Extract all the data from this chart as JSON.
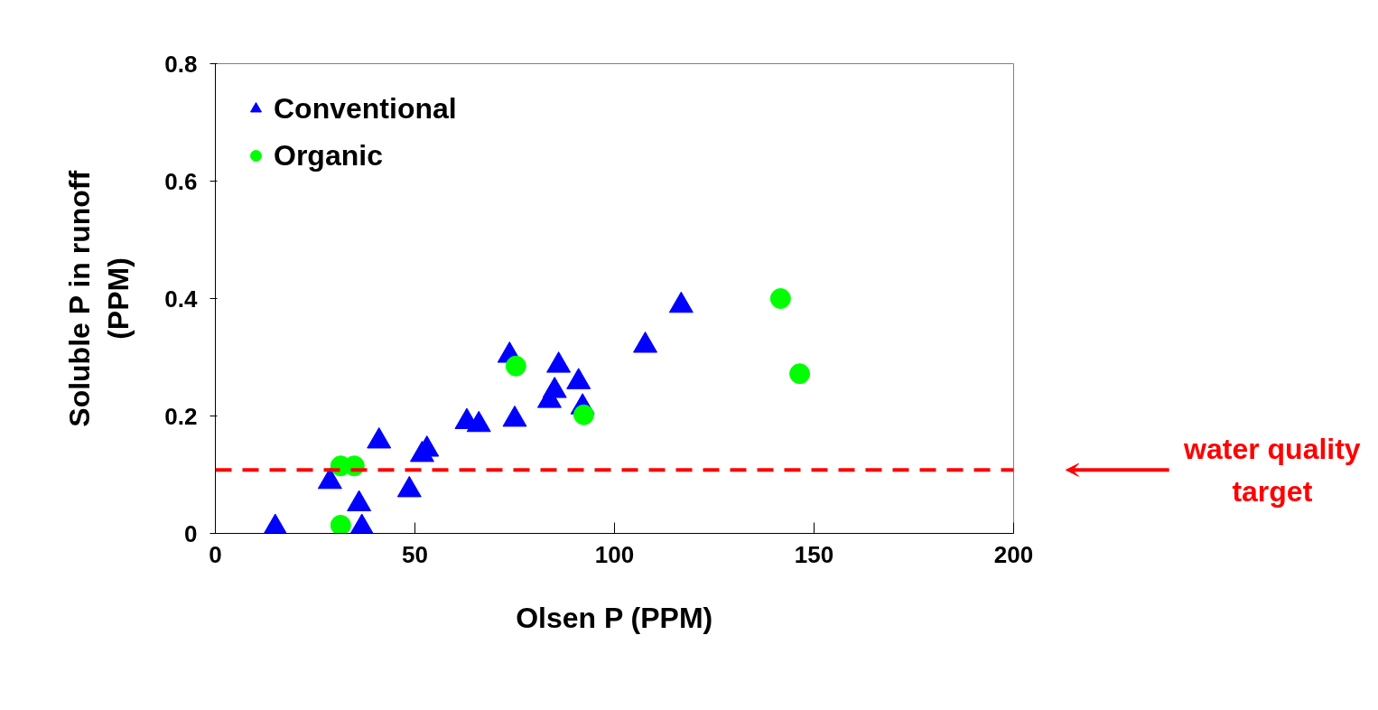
{
  "chart_data": {
    "type": "scatter",
    "xlabel": "Olsen P (PPM)",
    "ylabel": "Soluble P in runoff\n(PPM)",
    "xlim": [
      0,
      200
    ],
    "xticks": [
      0,
      50,
      100,
      150,
      200
    ],
    "ylim": [
      0,
      0.8
    ],
    "yticks": [
      0,
      0.2,
      0.4,
      0.6,
      0.8
    ],
    "grid": false,
    "legend": "top left",
    "series": [
      {
        "name": "Conventional",
        "color": "#0000ff",
        "marker": "triangle",
        "x": [
          15,
          28.7,
          36,
          36.7,
          41,
          48.6,
          51.8,
          53,
          63,
          66,
          75,
          73.7,
          86,
          83.7,
          85,
          91,
          92,
          107.7,
          116.7
        ],
        "values": [
          0.01,
          0.088,
          0.05,
          0.01,
          0.157,
          0.074,
          0.134,
          0.143,
          0.19,
          0.185,
          0.194,
          0.303,
          0.286,
          0.226,
          0.243,
          0.258,
          0.215,
          0.32,
          0.388
        ]
      },
      {
        "name": "Organic",
        "color": "#00ff00",
        "marker": "circle",
        "x": [
          31.4,
          34.8,
          31.4,
          75.3,
          92.3,
          141.6,
          146.4
        ],
        "values": [
          0.115,
          0.115,
          0.014,
          0.285,
          0.202,
          0.4,
          0.272
        ]
      }
    ],
    "ref_lines": [
      {
        "axis": "y",
        "value": 0.108,
        "label": "water quality\ntarget",
        "color": "#ff0000",
        "line_style": "dashed"
      }
    ]
  }
}
